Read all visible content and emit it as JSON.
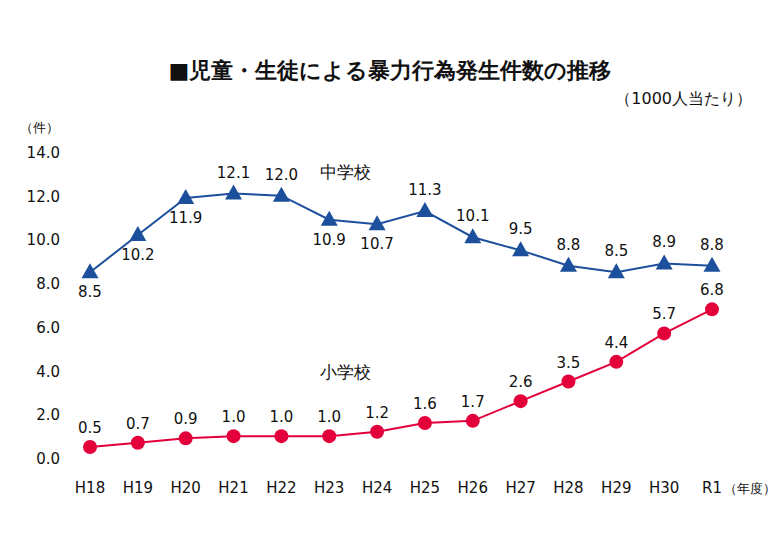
{
  "chart_data": {
    "type": "line",
    "title": "■児童・生徒による暴力行為発生件数の推移",
    "subtitle": "（1000人当たり）",
    "y_label": "（件）",
    "x_label": "（年度）",
    "categories": [
      "H18",
      "H19",
      "H20",
      "H21",
      "H22",
      "H23",
      "H24",
      "H25",
      "H26",
      "H27",
      "H28",
      "H29",
      "H30",
      "R1"
    ],
    "series": [
      {
        "name": "中学校",
        "color": "#1c4f9c",
        "marker": "triangle",
        "values": [
          8.5,
          10.2,
          11.9,
          12.1,
          12.0,
          10.9,
          10.7,
          11.3,
          10.1,
          9.5,
          8.8,
          8.5,
          8.9,
          8.8
        ],
        "value_labels": [
          "8.5",
          "10.2",
          "11.9",
          "12.1",
          "12.0",
          "10.9",
          "10.7",
          "11.3",
          "10.1",
          "9.5",
          "8.8",
          "8.5",
          "8.9",
          "8.8"
        ]
      },
      {
        "name": "小学校",
        "color": "#e3003a",
        "marker": "circle",
        "values": [
          0.5,
          0.7,
          0.9,
          1.0,
          1.0,
          1.0,
          1.2,
          1.6,
          1.7,
          2.6,
          3.5,
          4.4,
          5.7,
          6.8
        ],
        "value_labels": [
          "0.5",
          "0.7",
          "0.9",
          "1.0",
          "1.0",
          "1.0",
          "1.2",
          "1.6",
          "1.7",
          "2.6",
          "3.5",
          "4.4",
          "5.7",
          "6.8"
        ]
      }
    ],
    "ylim": [
      0,
      14
    ],
    "yticks": [
      {
        "value": 0,
        "label": "0.0"
      },
      {
        "value": 2,
        "label": "2.0"
      },
      {
        "value": 4,
        "label": "4.0"
      },
      {
        "value": 6,
        "label": "6.0"
      },
      {
        "value": 8,
        "label": "8.0"
      },
      {
        "value": 10,
        "label": "10.0"
      },
      {
        "value": 12,
        "label": "12.0"
      },
      {
        "value": 14,
        "label": "14.0"
      }
    ],
    "grid": false,
    "data_labels": true
  }
}
